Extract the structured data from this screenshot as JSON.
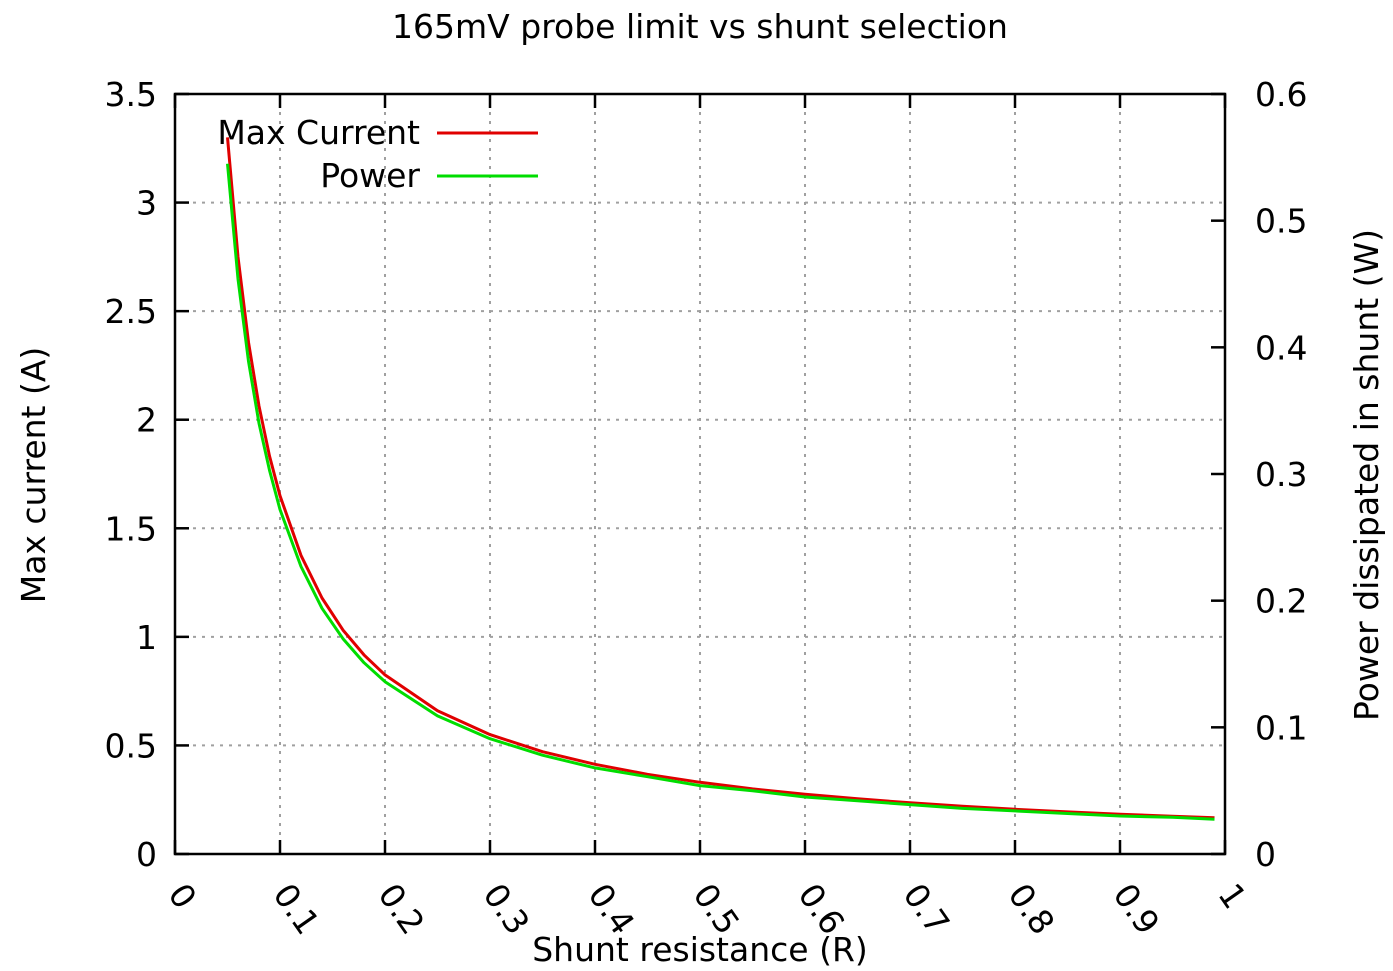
{
  "chart_data": {
    "type": "line",
    "title": "165mV probe limit vs shunt selection",
    "xlabel": "Shunt resistance (R)",
    "ylabel": "Max current (A)",
    "y2label": "Power dissipated in shunt (W)",
    "xlim": [
      0,
      1
    ],
    "ylim": [
      0,
      3.5
    ],
    "y2lim": [
      0,
      0.6
    ],
    "x_ticks": [
      "0",
      "0.1",
      "0.2",
      "0.3",
      "0.4",
      "0.5",
      "0.6",
      "0.7",
      "0.8",
      "0.9",
      "1"
    ],
    "y_ticks": [
      "0",
      "0.5",
      "1",
      "1.5",
      "2",
      "2.5",
      "3",
      "3.5"
    ],
    "y2_ticks": [
      "0",
      "0.1",
      "0.2",
      "0.3",
      "0.4",
      "0.5",
      "0.6"
    ],
    "grid": true,
    "legend": "top-left",
    "series": [
      {
        "name": "Max Current",
        "axis": "left",
        "color": "#e00000",
        "x": [
          0.05,
          0.06,
          0.07,
          0.08,
          0.09,
          0.1,
          0.12,
          0.14,
          0.16,
          0.18,
          0.2,
          0.25,
          0.3,
          0.35,
          0.4,
          0.45,
          0.5,
          0.55,
          0.6,
          0.65,
          0.7,
          0.75,
          0.8,
          0.85,
          0.9,
          0.95,
          0.99
        ],
        "y": [
          3.3,
          2.75,
          2.357,
          2.063,
          1.833,
          1.65,
          1.375,
          1.179,
          1.031,
          0.917,
          0.825,
          0.66,
          0.55,
          0.471,
          0.413,
          0.367,
          0.33,
          0.3,
          0.275,
          0.254,
          0.236,
          0.22,
          0.206,
          0.194,
          0.183,
          0.174,
          0.167
        ]
      },
      {
        "name": "Power",
        "axis": "right",
        "color": "#00dd00",
        "x": [
          0.05,
          0.06,
          0.07,
          0.08,
          0.09,
          0.1,
          0.12,
          0.14,
          0.16,
          0.18,
          0.2,
          0.25,
          0.3,
          0.35,
          0.4,
          0.45,
          0.5,
          0.55,
          0.6,
          0.65,
          0.7,
          0.75,
          0.8,
          0.85,
          0.9,
          0.95,
          0.99
        ],
        "y": [
          0.545,
          0.454,
          0.389,
          0.34,
          0.303,
          0.272,
          0.227,
          0.194,
          0.17,
          0.151,
          0.136,
          0.109,
          0.091,
          0.078,
          0.068,
          0.061,
          0.054,
          0.05,
          0.045,
          0.042,
          0.039,
          0.036,
          0.034,
          0.032,
          0.03,
          0.029,
          0.0275
        ]
      }
    ]
  }
}
